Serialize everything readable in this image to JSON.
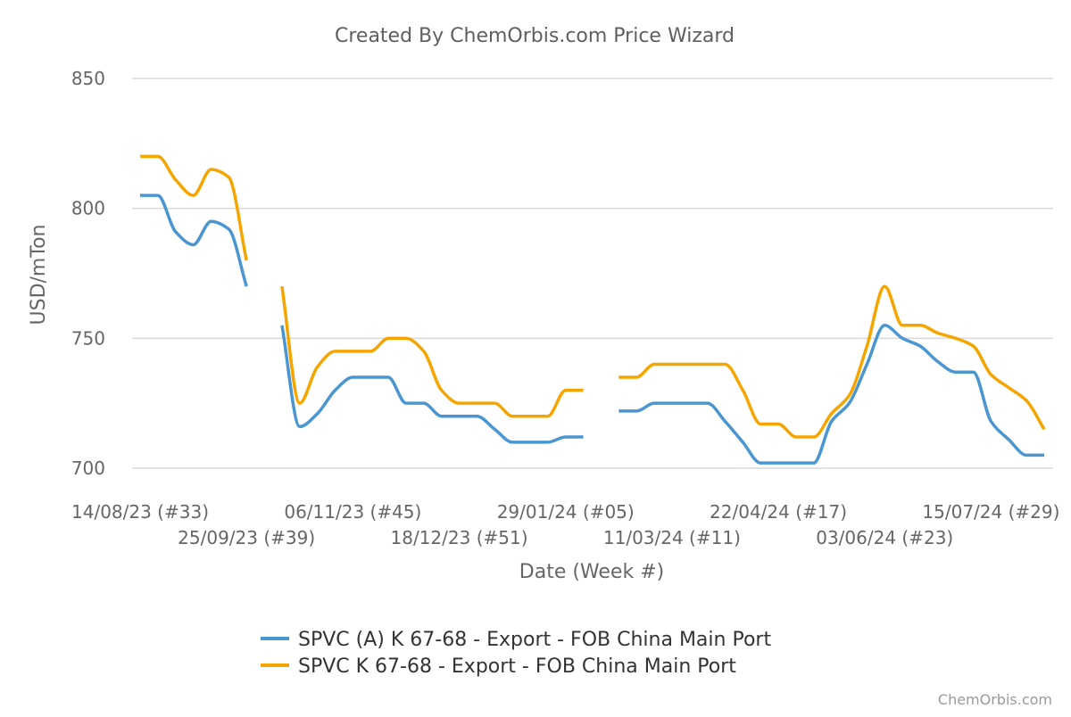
{
  "chart_data": {
    "type": "line",
    "title": "Created By ChemOrbis.com Price Wizard",
    "xlabel": "Date (Week #)",
    "ylabel": "USD/mTon",
    "ylim": [
      700,
      850
    ],
    "yticks": [
      "700",
      "750",
      "800",
      "850"
    ],
    "grid": true,
    "legend_position": "bottom",
    "x_tick_labels": [
      "14/08/23 (#33)",
      "25/09/23 (#39)",
      "06/11/23 (#45)",
      "18/12/23 (#51)",
      "29/01/24 (#05)",
      "11/03/24 (#11)",
      "22/04/24 (#17)",
      "03/06/24 (#23)",
      "15/07/24 (#29)"
    ],
    "x_tick_weeks": [
      0,
      6,
      12,
      18,
      24,
      30,
      36,
      42,
      48
    ],
    "x_max_week": 51,
    "series": [
      {
        "name": "SPVC (A) K 67-68 - Export - FOB China Main Port",
        "color": "#4a96d0",
        "segments": [
          [
            [
              0,
              805
            ],
            [
              1,
              805
            ],
            [
              2,
              791
            ],
            [
              3,
              786
            ],
            [
              4,
              795
            ],
            [
              5,
              792
            ],
            [
              6,
              770
            ]
          ],
          [
            [
              8,
              755
            ],
            [
              9,
              716
            ],
            [
              10,
              721
            ],
            [
              11,
              730
            ],
            [
              12,
              735
            ],
            [
              13,
              735
            ],
            [
              14,
              735
            ],
            [
              15,
              725
            ],
            [
              16,
              725
            ],
            [
              17,
              720
            ],
            [
              18,
              720
            ],
            [
              19,
              720
            ],
            [
              20,
              715
            ],
            [
              21,
              710
            ],
            [
              22,
              710
            ],
            [
              23,
              710
            ],
            [
              24,
              712
            ],
            [
              25,
              712
            ]
          ],
          [
            [
              27,
              722
            ],
            [
              28,
              722
            ],
            [
              29,
              725
            ],
            [
              30,
              725
            ],
            [
              31,
              725
            ],
            [
              32,
              725
            ],
            [
              33,
              718
            ],
            [
              34,
              710
            ],
            [
              35,
              702
            ],
            [
              36,
              702
            ],
            [
              37,
              702
            ],
            [
              38,
              702
            ],
            [
              39,
              718
            ],
            [
              40,
              725
            ],
            [
              41,
              740
            ],
            [
              42,
              755
            ],
            [
              43,
              750
            ],
            [
              44,
              747
            ],
            [
              45,
              741
            ],
            [
              46,
              737
            ],
            [
              47,
              737
            ],
            [
              48,
              718
            ],
            [
              49,
              711
            ],
            [
              50,
              705
            ],
            [
              51,
              705
            ]
          ]
        ]
      },
      {
        "name": "SPVC K 67-68 - Export - FOB China Main Port",
        "color": "#f5a500",
        "segments": [
          [
            [
              0,
              820
            ],
            [
              1,
              820
            ],
            [
              2,
              811
            ],
            [
              3,
              805
            ],
            [
              4,
              815
            ],
            [
              5,
              812
            ],
            [
              6,
              780
            ]
          ],
          [
            [
              8,
              770
            ],
            [
              9,
              725
            ],
            [
              10,
              739
            ],
            [
              11,
              745
            ],
            [
              12,
              745
            ],
            [
              13,
              745
            ],
            [
              14,
              750
            ],
            [
              15,
              750
            ],
            [
              16,
              745
            ],
            [
              17,
              730
            ],
            [
              18,
              725
            ],
            [
              19,
              725
            ],
            [
              20,
              725
            ],
            [
              21,
              720
            ],
            [
              22,
              720
            ],
            [
              23,
              720
            ],
            [
              24,
              730
            ],
            [
              25,
              730
            ]
          ],
          [
            [
              27,
              735
            ],
            [
              28,
              735
            ],
            [
              29,
              740
            ],
            [
              30,
              740
            ],
            [
              31,
              740
            ],
            [
              32,
              740
            ],
            [
              33,
              740
            ],
            [
              34,
              730
            ],
            [
              35,
              717
            ],
            [
              36,
              717
            ],
            [
              37,
              712
            ],
            [
              38,
              712
            ],
            [
              39,
              721
            ],
            [
              40,
              728
            ],
            [
              41,
              747
            ],
            [
              42,
              770
            ],
            [
              43,
              755
            ],
            [
              44,
              755
            ],
            [
              45,
              752
            ],
            [
              46,
              750
            ],
            [
              47,
              747
            ],
            [
              48,
              736
            ],
            [
              49,
              731
            ],
            [
              50,
              726
            ],
            [
              51,
              715
            ]
          ]
        ]
      }
    ]
  },
  "credit": "ChemOrbis.com"
}
